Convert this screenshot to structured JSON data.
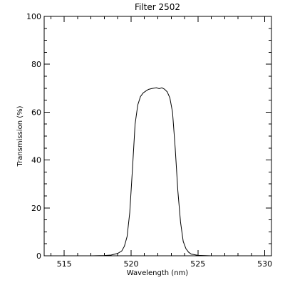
{
  "chart_data": {
    "type": "line",
    "title": "Filter 2502",
    "xlabel": "Wavelength (nm)",
    "ylabel": "Transmission (%)",
    "xlim": [
      513.5,
      530.5
    ],
    "ylim": [
      0,
      100
    ],
    "xticks": [
      515,
      520,
      525,
      530
    ],
    "yticks": [
      0,
      20,
      40,
      60,
      80,
      100
    ],
    "x_minor_step": 1,
    "y_minor_step": 5,
    "grid": false,
    "series": [
      {
        "color": "#000000",
        "x": [
          517.0,
          518.0,
          518.5,
          519.0,
          519.3,
          519.5,
          519.7,
          519.9,
          520.1,
          520.3,
          520.5,
          520.7,
          520.9,
          521.1,
          521.3,
          521.5,
          521.7,
          521.9,
          522.1,
          522.3,
          522.5,
          522.7,
          522.9,
          523.1,
          523.3,
          523.5,
          523.7,
          523.9,
          524.1,
          524.3,
          524.5,
          525.0,
          526.0,
          527.0
        ],
        "y": [
          0.0,
          0.1,
          0.3,
          1.0,
          2.0,
          4.0,
          8.0,
          18.0,
          36.0,
          55.0,
          63.0,
          66.5,
          68.0,
          68.8,
          69.5,
          69.8,
          70.0,
          70.2,
          69.8,
          70.2,
          69.6,
          68.5,
          66.0,
          60.0,
          45.0,
          27.0,
          14.0,
          6.0,
          3.0,
          1.5,
          0.7,
          0.2,
          0.0,
          0.0
        ]
      }
    ]
  }
}
